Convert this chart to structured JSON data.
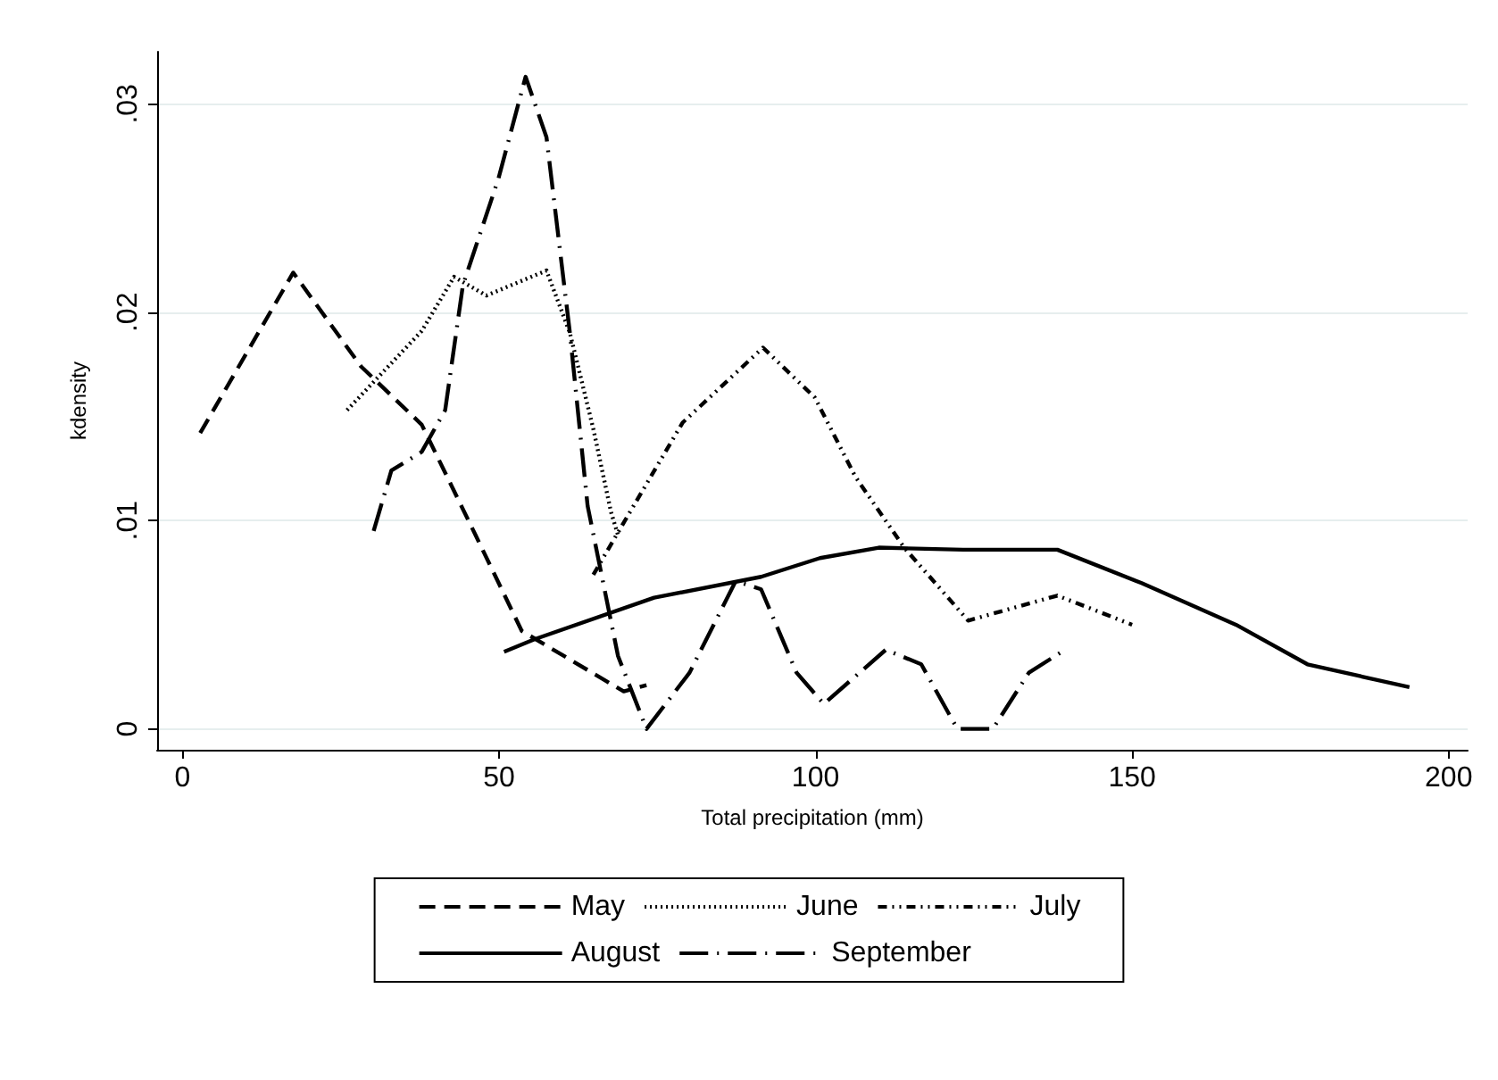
{
  "chart_data": {
    "type": "line",
    "xlabel": "Total precipitation (mm)",
    "ylabel": "kdensity",
    "xlim": [
      -4,
      203
    ],
    "xticks": [
      0,
      50,
      100,
      150,
      200
    ],
    "ylim": [
      -0.001,
      0.0325
    ],
    "yticks": [
      {
        "value": 0,
        "label": "0"
      },
      {
        "value": 0.01,
        "label": ".01"
      },
      {
        "value": 0.02,
        "label": ".02"
      },
      {
        "value": 0.03,
        "label": ".03"
      }
    ],
    "grid": "y",
    "legend": "bottom",
    "marker": "none",
    "series": [
      {
        "name": "May",
        "color": "#000000",
        "line_style": "dashed",
        "x": [
          2.8,
          17.5,
          28.2,
          37.8,
          46.3,
          53.6,
          69.7,
          73.3
        ],
        "values": [
          0.0142,
          0.0219,
          0.0174,
          0.0146,
          0.0093,
          0.0047,
          0.0018,
          0.0021
        ]
      },
      {
        "name": "June",
        "color": "#000000",
        "line_style": "dotted",
        "x": [
          26,
          37.8,
          42.9,
          48,
          57.5,
          61.2,
          64.9,
          67.7,
          68.8
        ],
        "values": [
          0.0153,
          0.0191,
          0.0217,
          0.0208,
          0.022,
          0.019,
          0.0144,
          0.0104,
          0.0093
        ]
      },
      {
        "name": "July",
        "color": "#000000",
        "line_style": "dashdotdot",
        "x": [
          64.9,
          69.7,
          79,
          91.7,
          99.9,
          106.3,
          114,
          124.1,
          138.2,
          150
        ],
        "values": [
          0.0074,
          0.0099,
          0.0147,
          0.0183,
          0.0159,
          0.0121,
          0.0087,
          0.0052,
          0.0064,
          0.005
        ]
      },
      {
        "name": "August",
        "color": "#000000",
        "line_style": "solid",
        "x": [
          50.8,
          55.6,
          74.5,
          91.4,
          100.7,
          110,
          123.3,
          138.2,
          151.5,
          166.4,
          177.7,
          193.8
        ],
        "values": [
          0.0037,
          0.0043,
          0.0063,
          0.0073,
          0.0082,
          0.0087,
          0.0086,
          0.0086,
          0.007,
          0.005,
          0.0031,
          0.002
        ]
      },
      {
        "name": "September",
        "color": "#000000",
        "line_style": "longdashdot",
        "x": [
          30.2,
          33,
          37.8,
          41.5,
          44.3,
          49.9,
          54.2,
          57.5,
          61.2,
          64,
          68.8,
          73.3,
          80.1,
          87.4,
          91.4,
          97,
          101.3,
          111.1,
          116.7,
          122.4,
          128,
          133.7,
          139.4
        ],
        "values": [
          0.0095,
          0.0124,
          0.0133,
          0.0153,
          0.0213,
          0.0264,
          0.0313,
          0.0284,
          0.019,
          0.0107,
          0.0035,
          0,
          0.0027,
          0.0071,
          0.0067,
          0.0027,
          0.0012,
          0.0038,
          0.0031,
          0,
          0,
          0.0027,
          0.0038
        ]
      }
    ]
  }
}
